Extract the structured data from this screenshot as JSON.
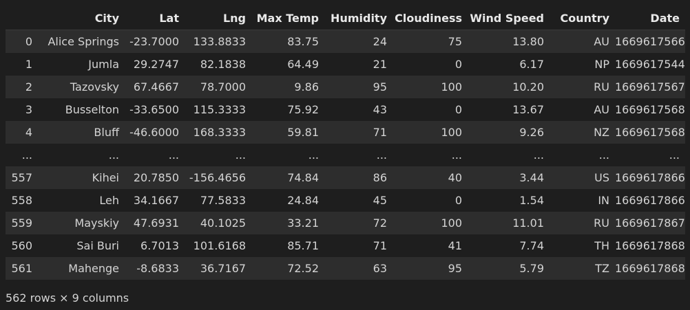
{
  "table": {
    "columns": [
      "",
      "City",
      "Lat",
      "Lng",
      "Max Temp",
      "Humidity",
      "Cloudiness",
      "Wind Speed",
      "Country",
      "Date"
    ],
    "rows": [
      [
        "0",
        "Alice Springs",
        "-23.7000",
        "133.8833",
        "83.75",
        "24",
        "75",
        "13.80",
        "AU",
        "1669617566"
      ],
      [
        "1",
        "Jumla",
        "29.2747",
        "82.1838",
        "64.49",
        "21",
        "0",
        "6.17",
        "NP",
        "1669617544"
      ],
      [
        "2",
        "Tazovsky",
        "67.4667",
        "78.7000",
        "9.86",
        "95",
        "100",
        "10.20",
        "RU",
        "1669617567"
      ],
      [
        "3",
        "Busselton",
        "-33.6500",
        "115.3333",
        "75.92",
        "43",
        "0",
        "13.67",
        "AU",
        "1669617568"
      ],
      [
        "4",
        "Bluff",
        "-46.6000",
        "168.3333",
        "59.81",
        "71",
        "100",
        "9.26",
        "NZ",
        "1669617568"
      ],
      [
        "...",
        "...",
        "...",
        "...",
        "...",
        "...",
        "...",
        "...",
        "...",
        "..."
      ],
      [
        "557",
        "Kihei",
        "20.7850",
        "-156.4656",
        "74.84",
        "86",
        "40",
        "3.44",
        "US",
        "1669617866"
      ],
      [
        "558",
        "Leh",
        "34.1667",
        "77.5833",
        "24.84",
        "45",
        "0",
        "1.54",
        "IN",
        "1669617866"
      ],
      [
        "559",
        "Mayskiy",
        "47.6931",
        "40.1025",
        "33.21",
        "72",
        "100",
        "11.01",
        "RU",
        "1669617867"
      ],
      [
        "560",
        "Sai Buri",
        "6.7013",
        "101.6168",
        "85.71",
        "71",
        "41",
        "7.74",
        "TH",
        "1669617868"
      ],
      [
        "561",
        "Mahenge",
        "-8.6833",
        "36.7167",
        "72.52",
        "63",
        "95",
        "5.79",
        "TZ",
        "1669617868"
      ]
    ]
  },
  "footer": {
    "shape_text": "562 rows × 9 columns"
  }
}
